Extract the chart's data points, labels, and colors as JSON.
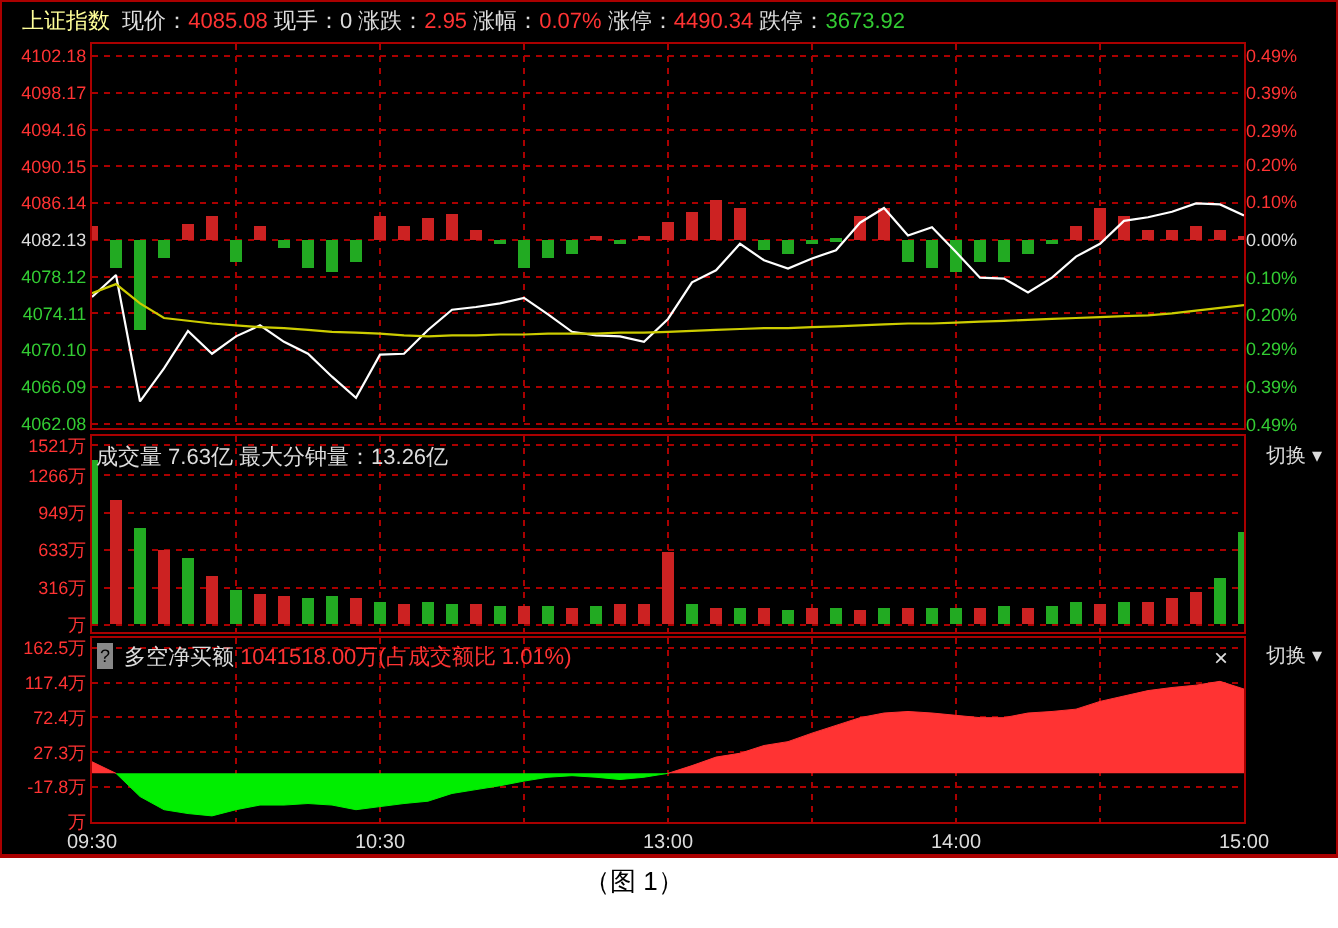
{
  "chart_data": [
    {
      "type": "line",
      "annotations": [
        "上证指数",
        "现价：",
        "4085.08",
        "现手：0",
        "涨跌：",
        "2.95",
        "涨幅：",
        "0.07%",
        "涨停：",
        "4490.34",
        "跌停：",
        "3673.92"
      ],
      "categories": [
        null,
        null,
        null,
        null,
        null,
        null,
        null,
        null,
        null,
        null,
        null,
        null,
        null,
        null,
        null,
        null,
        null,
        null,
        null,
        null,
        null,
        null,
        null,
        null,
        null,
        null,
        null,
        null,
        null,
        null,
        null,
        null,
        null,
        null,
        null,
        null,
        null,
        null,
        null,
        null,
        null,
        null,
        null,
        null,
        null,
        null,
        null,
        null,
        null
      ],
      "ylim": [
        4061.6,
        4103.5
      ],
      "yticks": [
        {
          "value": 4062.08,
          "label": "4062.08"
        },
        {
          "value": 4066.09,
          "label": "4066.09"
        },
        {
          "value": 4070.1,
          "label": "4070.10"
        },
        {
          "value": 4074.11,
          "label": "4074.11"
        },
        {
          "value": 4078.12,
          "label": "4078.12"
        },
        {
          "value": 4082.13,
          "label": "4082.13"
        },
        {
          "value": 4086.14,
          "label": "4086.14"
        },
        {
          "value": 4090.15,
          "label": "4090.15"
        },
        {
          "value": 4094.16,
          "label": "4094.16"
        },
        {
          "value": 4098.17,
          "label": "4098.17"
        },
        {
          "value": 4102.18,
          "label": "4102.18"
        }
      ],
      "y2lim": [
        -0.5,
        0.52
      ],
      "y2ticks": [
        {
          "value": -0.49,
          "label": "0.49%"
        },
        {
          "value": -0.39,
          "label": "0.39%"
        },
        {
          "value": -0.29,
          "label": "0.29%"
        },
        {
          "value": -0.2,
          "label": "0.20%"
        },
        {
          "value": -0.1,
          "label": "0.10%"
        },
        {
          "value": 0,
          "label": "0.00%"
        },
        {
          "value": 0.1,
          "label": "0.10%"
        },
        {
          "value": 0.2,
          "label": "0.20%"
        },
        {
          "value": 0.29,
          "label": "0.29%"
        },
        {
          "value": 0.39,
          "label": "0.39%"
        },
        {
          "value": 0.49,
          "label": "0.49%"
        }
      ],
      "grid": true,
      "tick_labels": "y",
      "marker": "none",
      "line_style": "solid",
      "series": [
        {
          "type": "bar",
          "values": [
            1.5,
            -3,
            -9.8,
            -2,
            1.8,
            2.5,
            -2.5,
            1.5,
            -0.8,
            -3,
            -3.5,
            -2.5,
            2.6,
            1.5,
            2.3,
            2.8,
            1,
            -0.5,
            -3,
            -2,
            -1.5,
            0.3,
            -0.5,
            0.3,
            2,
            3,
            4.3,
            3.4,
            -1,
            -1.5,
            -0.5,
            -0.3,
            2.5,
            3.5,
            -2.5,
            -3,
            -3.5,
            -2.5,
            -2.5,
            -1.5,
            -0.5,
            1.5,
            3.4,
            2.5,
            1,
            1,
            1.5,
            1,
            0.5
          ],
          "base": [
            4082.13,
            4082.13,
            4082.13,
            4082.13,
            4082.13,
            4082.13,
            4082.13,
            4082.13,
            4082.13,
            4082.13,
            4082.13,
            4082.13,
            4082.13,
            4082.13,
            4082.13,
            4082.13,
            4082.13,
            4082.13,
            4082.13,
            4082.13,
            4082.13,
            4082.13,
            4082.13,
            4082.13,
            4082.13,
            4082.13,
            4082.13,
            4082.13,
            4082.13,
            4082.13,
            4082.13,
            4082.13,
            4082.13,
            4082.13,
            4082.13,
            4082.13,
            4082.13,
            4082.13,
            4082.13,
            4082.13,
            4082.13,
            4082.13,
            4082.13,
            4082.13,
            4082.13,
            4082.13,
            4082.13,
            4082.13,
            4082.13
          ],
          "colors": [
            "#cc2222",
            "#22aa22",
            "#22aa22",
            "#22aa22",
            "#cc2222",
            "#cc2222",
            "#22aa22",
            "#cc2222",
            "#22aa22",
            "#22aa22",
            "#22aa22",
            "#22aa22",
            "#cc2222",
            "#cc2222",
            "#cc2222",
            "#cc2222",
            "#cc2222",
            "#22aa22",
            "#22aa22",
            "#22aa22",
            "#22aa22",
            "#cc2222",
            "#22aa22",
            "#cc2222",
            "#cc2222",
            "#cc2222",
            "#cc2222",
            "#cc2222",
            "#22aa22",
            "#22aa22",
            "#22aa22",
            "#22aa22",
            "#cc2222",
            "#cc2222",
            "#22aa22",
            "#22aa22",
            "#22aa22",
            "#22aa22",
            "#22aa22",
            "#22aa22",
            "#22aa22",
            "#cc2222",
            "#cc2222",
            "#cc2222",
            "#cc2222",
            "#cc2222",
            "#cc2222",
            "#cc2222",
            "#cc2222"
          ]
        },
        {
          "type": "line",
          "color": "#ffffff",
          "values": [
            4075.9,
            4078.3,
            4064.5,
            4068.1,
            4072.2,
            4069.7,
            4071.6,
            4072.8,
            4071.0,
            4069.7,
            4067.2,
            4064.9,
            4069.6,
            4069.7,
            4072.3,
            4074.5,
            4074.8,
            4075.2,
            4075.8,
            4074.0,
            4072.1,
            4071.7,
            4071.6,
            4071.0,
            4073.5,
            4077.5,
            4078.8,
            4081.7,
            4079.9,
            4079.0,
            4080.1,
            4081.0,
            4084.0,
            4085.6,
            4082.6,
            4083.5,
            4080.8,
            4078.0,
            4077.9,
            4076.4,
            4078.0,
            4080.3,
            4081.7,
            4084.2,
            4084.6,
            4085.2,
            4086.1,
            4086.0,
            4084.8
          ]
        },
        {
          "type": "line",
          "color": "#cccc00",
          "values": [
            4076.3,
            4077.3,
            4075.2,
            4073.6,
            4073.3,
            4073.0,
            4072.8,
            4072.6,
            4072.5,
            4072.3,
            4072.1,
            4072.0,
            4071.9,
            4071.7,
            4071.6,
            4071.7,
            4071.7,
            4071.8,
            4071.8,
            4071.9,
            4071.9,
            4071.9,
            4072.0,
            4072.0,
            4072.1,
            4072.2,
            4072.3,
            4072.4,
            4072.5,
            4072.5,
            4072.6,
            4072.7,
            4072.8,
            4072.9,
            4073.0,
            4073.0,
            4073.1,
            4073.2,
            4073.3,
            4073.4,
            4073.5,
            4073.6,
            4073.7,
            4073.8,
            4073.9,
            4074.1,
            4074.4,
            4074.7,
            4075.0
          ]
        }
      ]
    },
    {
      "type": "bar",
      "annotations": [
        "成交量 7.63亿 最大分钟量：13.26亿",
        "切换 ▾"
      ],
      "categories": [
        null,
        null,
        null,
        null,
        null,
        null,
        null,
        null,
        null,
        null,
        null,
        null,
        null,
        null,
        null,
        null,
        null,
        null,
        null,
        null,
        null,
        null,
        null,
        null,
        null,
        null,
        null,
        null,
        null,
        null,
        null,
        null,
        null,
        null,
        null,
        null,
        null,
        null,
        null,
        null,
        null,
        null,
        null,
        null,
        null,
        null,
        null,
        null,
        null
      ],
      "values": [
        1400,
        1050,
        820,
        640,
        560,
        420,
        300,
        260,
        250,
        230,
        240,
        230,
        200,
        170,
        200,
        180,
        170,
        160,
        160,
        160,
        150,
        160,
        170,
        180,
        620,
        180,
        150,
        140,
        140,
        130,
        140,
        140,
        130,
        140,
        150,
        150,
        140,
        150,
        160,
        150,
        160,
        190,
        180,
        190,
        200,
        230,
        280,
        400,
        780
      ],
      "colors": [
        "#22aa22",
        "#cc2222",
        "#22aa22",
        "#cc2222",
        "#22aa22",
        "#cc2222",
        "#22aa22",
        "#cc2222",
        "#cc2222",
        "#22aa22",
        "#22aa22",
        "#cc2222",
        "#22aa22",
        "#cc2222",
        "#22aa22",
        "#22aa22",
        "#cc2222",
        "#22aa22",
        "#cc2222",
        "#22aa22",
        "#cc2222",
        "#22aa22",
        "#cc2222",
        "#cc2222",
        "#cc2222",
        "#22aa22",
        "#cc2222",
        "#22aa22",
        "#cc2222",
        "#22aa22",
        "#cc2222",
        "#22aa22",
        "#cc2222",
        "#22aa22",
        "#cc2222",
        "#22aa22",
        "#22aa22",
        "#cc2222",
        "#22aa22",
        "#cc2222",
        "#22aa22",
        "#22aa22",
        "#cc2222",
        "#22aa22",
        "#cc2222",
        "#cc2222",
        "#cc2222",
        "#22aa22",
        "#22aa22"
      ],
      "ylim": [
        -60,
        1600
      ],
      "yticks": [
        {
          "value": 0,
          "label": "万"
        },
        {
          "value": 316,
          "label": "316万"
        },
        {
          "value": 633,
          "label": "633万"
        },
        {
          "value": 949,
          "label": "949万"
        },
        {
          "value": 1266,
          "label": "1266万"
        },
        {
          "value": 1521,
          "label": "1521万"
        }
      ],
      "grid": true,
      "tick_labels": "y"
    },
    {
      "type": "area",
      "annotations": [
        "?",
        "多空净买额",
        "1041518.00万(占成交额比 1.01%)",
        "×",
        "切换 ▾",
        "（图 1）"
      ],
      "categories": [
        "09:30",
        null,
        null,
        null,
        null,
        null,
        null,
        null,
        null,
        null,
        null,
        null,
        "10:30",
        null,
        null,
        null,
        null,
        null,
        null,
        null,
        null,
        null,
        null,
        null,
        "13:00",
        null,
        null,
        null,
        null,
        null,
        null,
        null,
        null,
        null,
        null,
        null,
        "14:00",
        null,
        null,
        null,
        null,
        null,
        null,
        null,
        null,
        null,
        null,
        null,
        "15:00"
      ],
      "ylim": [
        -62.9,
        175
      ],
      "yticks": [
        {
          "value": -62.9,
          "label": "万"
        },
        {
          "value": -17.8,
          "label": "-17.8万"
        },
        {
          "value": 27.3,
          "label": "27.3万"
        },
        {
          "value": 72.4,
          "label": "72.4万"
        },
        {
          "value": 117.4,
          "label": "117.4万"
        },
        {
          "value": 162.5,
          "label": "162.5万"
        }
      ],
      "grid": true,
      "series": [
        {
          "color": "#ff3333",
          "values": [
            15,
            0,
            null,
            null,
            null,
            null,
            null,
            null,
            null,
            null,
            null,
            null,
            null,
            null,
            null,
            null,
            null,
            null,
            null,
            null,
            null,
            null,
            null,
            null,
            0,
            10,
            21,
            26,
            36,
            41,
            52,
            62,
            72,
            78,
            80,
            78,
            75,
            72,
            72,
            78,
            80,
            83,
            93,
            100,
            107,
            111,
            114,
            119,
            109
          ]
        },
        {
          "color": "#00ee00",
          "values": [
            null,
            0,
            -30,
            -47,
            -52,
            -55,
            -47,
            -41,
            -41,
            -39,
            -41,
            -47,
            -43,
            -39,
            -36,
            -26,
            -21,
            -16,
            -10,
            -5,
            -3,
            -5,
            -8,
            -5,
            0,
            null,
            null,
            null,
            null,
            null,
            null,
            null,
            null,
            null,
            null,
            null,
            null,
            null,
            null,
            null,
            null,
            null,
            null,
            null,
            null,
            null,
            null,
            null,
            null
          ]
        }
      ]
    }
  ]
}
